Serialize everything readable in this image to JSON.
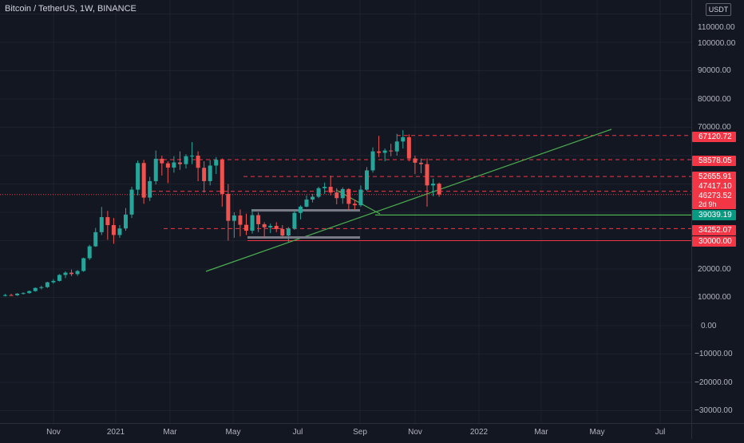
{
  "header": {
    "title": "Bitcoin / TetherUS, 1W, BINANCE",
    "currency_badge": "USDT"
  },
  "price_axis": {
    "labels": [
      "110000.00",
      "100000.00",
      "90000.00",
      "80000.00",
      "70000.00",
      "20000.00",
      "10000.00",
      "0.00",
      "−10000.00",
      "−20000.00",
      "−30000.00"
    ]
  },
  "time_axis": {
    "labels": [
      "Nov",
      "2021",
      "Mar",
      "May",
      "Jul",
      "Sep",
      "Nov",
      "2022",
      "Mar",
      "May",
      "Jul"
    ]
  },
  "price_tags": [
    {
      "text": "67120.72",
      "color": "#f23645"
    },
    {
      "text": "58578.05",
      "color": "#f23645"
    },
    {
      "text": "52655.91",
      "color": "#f23645"
    },
    {
      "text": "47417.10",
      "color": "#f23645"
    },
    {
      "text": "46273.52",
      "color": "#f23645"
    },
    {
      "text": "2d 9h",
      "color": "#f23645"
    },
    {
      "text": "39039.19",
      "color": "#089981"
    },
    {
      "text": "34252.07",
      "color": "#f23645"
    },
    {
      "text": "30000.00",
      "color": "#f23645"
    }
  ],
  "colors": {
    "background": "#131722",
    "grid": "#1e222d",
    "up": "#26a69a",
    "down": "#ef5350",
    "level_red": "#f23645",
    "trendline": "#4caf50"
  },
  "chart_data": {
    "type": "candlestick",
    "title": "Bitcoin / TetherUS, 1W, BINANCE",
    "interval": "1W",
    "ylim": [
      -35000,
      115000
    ],
    "x_tick_labels": [
      "Nov",
      "2021",
      "Mar",
      "May",
      "Jul",
      "Sep",
      "Nov",
      "2022",
      "Mar",
      "May",
      "Jul"
    ],
    "candles": [
      {
        "o": 10500,
        "h": 11200,
        "l": 10300,
        "c": 10800
      },
      {
        "o": 10800,
        "h": 11300,
        "l": 10600,
        "c": 10700
      },
      {
        "o": 10700,
        "h": 11500,
        "l": 10500,
        "c": 11300
      },
      {
        "o": 11300,
        "h": 11800,
        "l": 11000,
        "c": 11500
      },
      {
        "o": 11500,
        "h": 12400,
        "l": 11300,
        "c": 12200
      },
      {
        "o": 12200,
        "h": 13500,
        "l": 12000,
        "c": 13300
      },
      {
        "o": 13300,
        "h": 14100,
        "l": 12800,
        "c": 13600
      },
      {
        "o": 13600,
        "h": 15500,
        "l": 13300,
        "c": 15300
      },
      {
        "o": 15300,
        "h": 16400,
        "l": 14800,
        "c": 15800
      },
      {
        "o": 15800,
        "h": 18200,
        "l": 15600,
        "c": 17900
      },
      {
        "o": 17900,
        "h": 19200,
        "l": 16800,
        "c": 18700
      },
      {
        "o": 18700,
        "h": 19800,
        "l": 17500,
        "c": 18200
      },
      {
        "o": 18200,
        "h": 19600,
        "l": 17600,
        "c": 19300
      },
      {
        "o": 19300,
        "h": 24000,
        "l": 19000,
        "c": 23800
      },
      {
        "o": 23800,
        "h": 28500,
        "l": 23200,
        "c": 28000
      },
      {
        "o": 28000,
        "h": 34500,
        "l": 27800,
        "c": 33000
      },
      {
        "o": 33000,
        "h": 41900,
        "l": 32000,
        "c": 38300
      },
      {
        "o": 38300,
        "h": 40500,
        "l": 30300,
        "c": 35500
      },
      {
        "o": 35500,
        "h": 38000,
        "l": 28900,
        "c": 32000
      },
      {
        "o": 32000,
        "h": 35500,
        "l": 31000,
        "c": 34300
      },
      {
        "o": 34300,
        "h": 41500,
        "l": 33500,
        "c": 39200
      },
      {
        "o": 39200,
        "h": 49000,
        "l": 38000,
        "c": 48000
      },
      {
        "o": 48000,
        "h": 58300,
        "l": 46000,
        "c": 57400
      },
      {
        "o": 57400,
        "h": 58500,
        "l": 43000,
        "c": 45200
      },
      {
        "o": 45200,
        "h": 52500,
        "l": 44000,
        "c": 51000
      },
      {
        "o": 51000,
        "h": 61800,
        "l": 49800,
        "c": 58900
      },
      {
        "o": 58900,
        "h": 60000,
        "l": 53000,
        "c": 57300
      },
      {
        "o": 57300,
        "h": 58000,
        "l": 50300,
        "c": 55800
      },
      {
        "o": 55800,
        "h": 59800,
        "l": 54000,
        "c": 57600
      },
      {
        "o": 57600,
        "h": 61500,
        "l": 55000,
        "c": 57000
      },
      {
        "o": 57000,
        "h": 60500,
        "l": 55500,
        "c": 59800
      },
      {
        "o": 59800,
        "h": 64800,
        "l": 57000,
        "c": 60000
      },
      {
        "o": 60000,
        "h": 61500,
        "l": 51000,
        "c": 55700
      },
      {
        "o": 55700,
        "h": 58000,
        "l": 47000,
        "c": 51000
      },
      {
        "o": 51000,
        "h": 58500,
        "l": 49500,
        "c": 56500
      },
      {
        "o": 56500,
        "h": 59500,
        "l": 53500,
        "c": 58500
      },
      {
        "o": 58500,
        "h": 59000,
        "l": 42000,
        "c": 46500
      },
      {
        "o": 46500,
        "h": 50000,
        "l": 30000,
        "c": 37000
      },
      {
        "o": 37000,
        "h": 40000,
        "l": 31000,
        "c": 38900
      },
      {
        "o": 38900,
        "h": 41000,
        "l": 31500,
        "c": 35600
      },
      {
        "o": 35600,
        "h": 39500,
        "l": 32000,
        "c": 33500
      },
      {
        "o": 33500,
        "h": 41000,
        "l": 32500,
        "c": 39000
      },
      {
        "o": 39000,
        "h": 40000,
        "l": 33000,
        "c": 35800
      },
      {
        "o": 35800,
        "h": 36500,
        "l": 31000,
        "c": 34700
      },
      {
        "o": 34700,
        "h": 36000,
        "l": 32700,
        "c": 35200
      },
      {
        "o": 35200,
        "h": 36500,
        "l": 33000,
        "c": 34100
      },
      {
        "o": 34100,
        "h": 35500,
        "l": 31000,
        "c": 31800
      },
      {
        "o": 31800,
        "h": 34800,
        "l": 29300,
        "c": 34300
      },
      {
        "o": 34300,
        "h": 40500,
        "l": 33800,
        "c": 39800
      },
      {
        "o": 39800,
        "h": 42500,
        "l": 37500,
        "c": 42000
      },
      {
        "o": 42000,
        "h": 46000,
        "l": 41800,
        "c": 44500
      },
      {
        "o": 44500,
        "h": 46500,
        "l": 43500,
        "c": 45500
      },
      {
        "o": 45500,
        "h": 49000,
        "l": 45000,
        "c": 48500
      },
      {
        "o": 48500,
        "h": 50500,
        "l": 46500,
        "c": 49000
      },
      {
        "o": 49000,
        "h": 52900,
        "l": 46000,
        "c": 47000
      },
      {
        "o": 47000,
        "h": 48500,
        "l": 42800,
        "c": 45000
      },
      {
        "o": 45000,
        "h": 48800,
        "l": 43000,
        "c": 48200
      },
      {
        "o": 48200,
        "h": 48500,
        "l": 40800,
        "c": 43000
      },
      {
        "o": 43000,
        "h": 44500,
        "l": 41000,
        "c": 42500
      },
      {
        "o": 42500,
        "h": 49500,
        "l": 42000,
        "c": 48000
      },
      {
        "o": 48000,
        "h": 56000,
        "l": 47500,
        "c": 54800
      },
      {
        "o": 54800,
        "h": 62900,
        "l": 54000,
        "c": 61500
      },
      {
        "o": 61500,
        "h": 67000,
        "l": 59500,
        "c": 61000
      },
      {
        "o": 61000,
        "h": 62500,
        "l": 58000,
        "c": 61800
      },
      {
        "o": 61800,
        "h": 64200,
        "l": 59800,
        "c": 61500
      },
      {
        "o": 61500,
        "h": 67700,
        "l": 60000,
        "c": 65000
      },
      {
        "o": 65000,
        "h": 69000,
        "l": 62500,
        "c": 66500
      },
      {
        "o": 66500,
        "h": 67500,
        "l": 58000,
        "c": 59000
      },
      {
        "o": 59000,
        "h": 60000,
        "l": 53500,
        "c": 57500
      },
      {
        "o": 57500,
        "h": 59000,
        "l": 53800,
        "c": 57000
      },
      {
        "o": 57000,
        "h": 59000,
        "l": 42000,
        "c": 49500
      },
      {
        "o": 49500,
        "h": 51900,
        "l": 45700,
        "c": 50100
      },
      {
        "o": 50100,
        "h": 50500,
        "l": 45500,
        "c": 46300
      }
    ],
    "levels": [
      67120.72,
      58578.05,
      52655.91,
      47417.1,
      39039.19,
      34252.07,
      30000.0
    ],
    "last_price": 46273.52,
    "bar_countdown": "2d 9h"
  }
}
